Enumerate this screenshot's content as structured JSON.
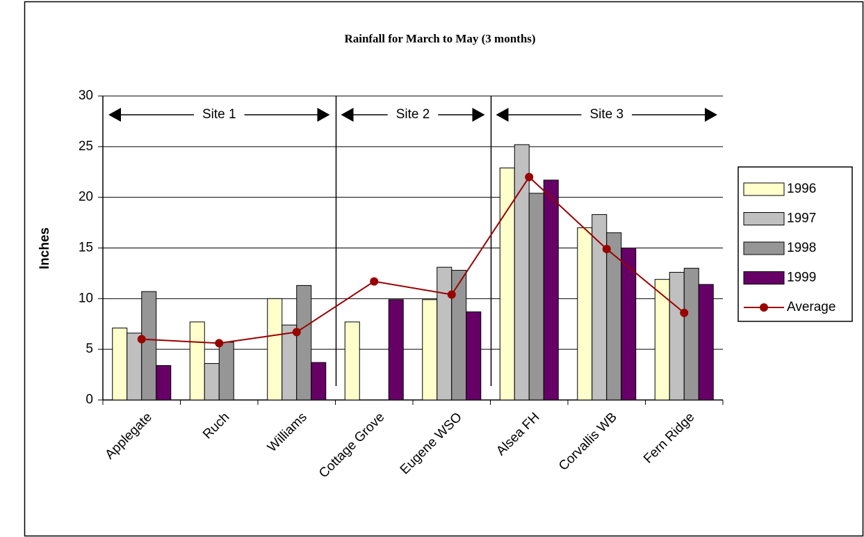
{
  "chart_data": {
    "type": "bar",
    "title": "Rainfall for March to May (3 months)",
    "y_label": "Inches",
    "categories": [
      "Applegate",
      "Ruch",
      "Williams",
      "Cottage Grove",
      "Eugene WSO",
      "Alsea FH",
      "Corvallis WB",
      "Fern Ridge"
    ],
    "series": [
      {
        "name": "1996",
        "color": "#ffffcc",
        "values": [
          7.1,
          7.7,
          10.0,
          7.7,
          9.9,
          22.9,
          17.0,
          11.9
        ]
      },
      {
        "name": "1997",
        "color": "#c0c0c0",
        "values": [
          6.6,
          3.6,
          7.4,
          null,
          13.1,
          25.2,
          18.3,
          12.6
        ]
      },
      {
        "name": "1998",
        "color": "#969696",
        "values": [
          10.7,
          5.7,
          11.3,
          null,
          12.8,
          20.4,
          16.5,
          13.0
        ]
      },
      {
        "name": "1999",
        "color": "#660066",
        "values": [
          3.4,
          null,
          3.7,
          9.9,
          8.7,
          21.7,
          15.0,
          11.4
        ]
      },
      {
        "name": "Average",
        "type": "line",
        "color": "#990000",
        "values": [
          6.0,
          5.6,
          6.7,
          11.7,
          10.4,
          22.0,
          14.9,
          8.6
        ]
      }
    ],
    "annotations": [
      "Site 1",
      "Site 2",
      "Site 3"
    ],
    "ylim": [
      0,
      30
    ],
    "yticks": [
      0,
      5,
      10,
      15,
      20,
      25,
      30
    ],
    "grid": true,
    "legend": "right"
  }
}
